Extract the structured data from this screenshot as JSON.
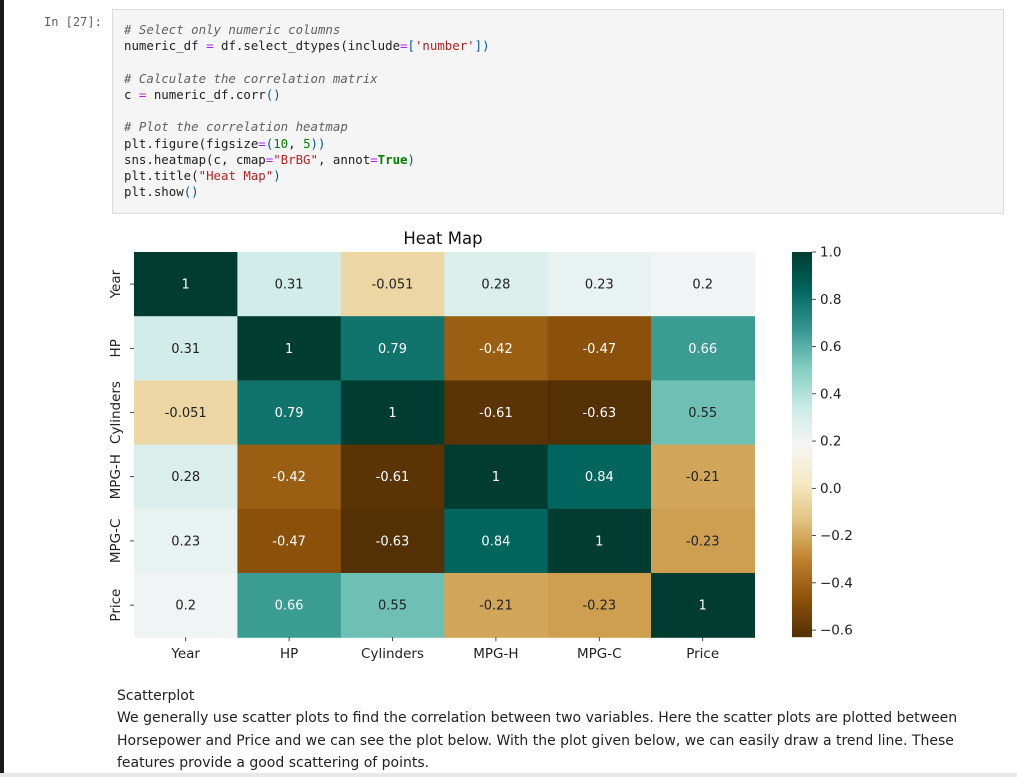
{
  "cell": {
    "prompt": "In [27]:",
    "lines": [
      {
        "comment": "# Select only numeric columns"
      },
      {
        "a": "numeric_df ",
        "op1": "=",
        "b": " df.select_dtypes(include",
        "op2": "=",
        "c": "[",
        "s": "'number'",
        "d": "])"
      },
      {
        "blank": ""
      },
      {
        "comment": "# Calculate the correlation matrix"
      },
      {
        "a": "c ",
        "op1": "=",
        "b": " numeric_df.corr",
        "c": "()"
      },
      {
        "blank": ""
      },
      {
        "comment": "# Plot the correlation heatmap"
      },
      {
        "a": "plt.figure(figsize",
        "op1": "=",
        "b": "(",
        "n1": "10",
        "c": ", ",
        "n2": "5",
        "d": "))"
      },
      {
        "a": "sns.heatmap(c, cmap",
        "op1": "=",
        "s": "\"BrBG\"",
        "b": ", annot",
        "op2": "=",
        "kw": "True",
        "c": ")"
      },
      {
        "a": "plt.title(",
        "s": "\"Heat Map\"",
        "b": ")"
      },
      {
        "a": "plt.show",
        "c": "()"
      }
    ]
  },
  "chart_data": {
    "type": "heatmap",
    "title": "Heat Map",
    "colormap": "BrBG",
    "labels": [
      "Year",
      "HP",
      "Cylinders",
      "MPG-H",
      "MPG-C",
      "Price"
    ],
    "values": [
      [
        1,
        0.31,
        -0.051,
        0.28,
        0.23,
        0.2
      ],
      [
        0.31,
        1,
        0.79,
        -0.42,
        -0.47,
        0.66
      ],
      [
        -0.051,
        0.79,
        1,
        -0.61,
        -0.63,
        0.55
      ],
      [
        0.28,
        -0.42,
        -0.61,
        1,
        0.84,
        -0.21
      ],
      [
        0.23,
        -0.47,
        -0.63,
        0.84,
        1,
        -0.23
      ],
      [
        0.2,
        0.66,
        0.55,
        -0.21,
        -0.23,
        1
      ]
    ],
    "annotations": [
      [
        "1",
        "0.31",
        "-0.051",
        "0.28",
        "0.23",
        "0.2"
      ],
      [
        "0.31",
        "1",
        "0.79",
        "-0.42",
        "-0.47",
        "0.66"
      ],
      [
        "-0.051",
        "0.79",
        "1",
        "-0.61",
        "-0.63",
        "0.55"
      ],
      [
        "0.28",
        "-0.42",
        "-0.61",
        "1",
        "0.84",
        "-0.21"
      ],
      [
        "0.23",
        "-0.47",
        "-0.63",
        "0.84",
        "1",
        "-0.23"
      ],
      [
        "0.2",
        "0.66",
        "0.55",
        "-0.21",
        "-0.23",
        "1"
      ]
    ],
    "vmin": -0.63,
    "vmax": 1.0,
    "colorbar_ticks": [
      1.0,
      0.8,
      0.6,
      0.4,
      0.2,
      0.0,
      -0.2,
      -0.4,
      -0.6
    ],
    "colorbar_tick_labels": [
      "1.0",
      "0.8",
      "0.6",
      "0.4",
      "0.2",
      "0.0",
      "−0.2",
      "−0.4",
      "−0.6"
    ]
  },
  "markdown": {
    "heading": "Scatterplot",
    "paragraph": "We generally use scatter plots to find the correlation between two variables. Here the scatter plots are plotted between Horsepower and Price and we can see the plot below. With the plot given below, we can easily draw a trend line. These features provide a good scattering of points."
  }
}
